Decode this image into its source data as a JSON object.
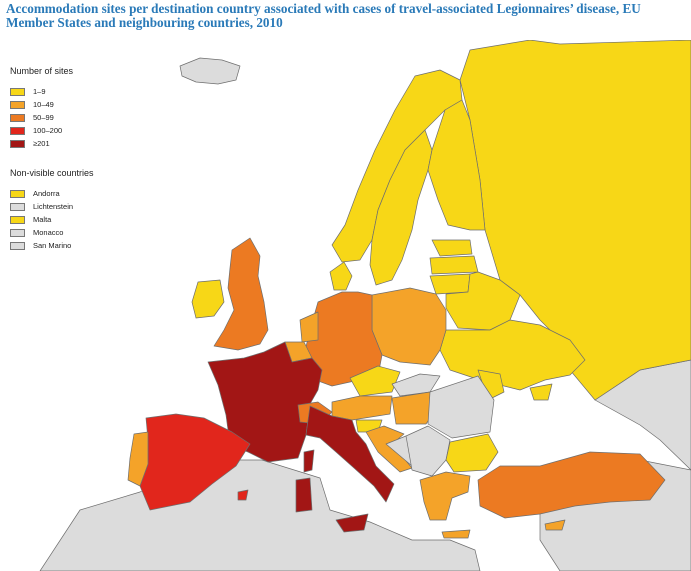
{
  "title": "Accommodation sites per destination country associated with cases of travel-associated Legionnaires’ disease, EU Member States and neighbouring countries, 2010",
  "colors": {
    "sea": "#ffffff",
    "non_data": "#dcdcdc",
    "border": "#6e6e6e",
    "c1_9": "#f7d717",
    "c10_49": "#f4a329",
    "c50_99": "#ec7a22",
    "c100_200": "#e1261c",
    "c201_plus": "#a21615"
  },
  "legend": {
    "title": "Number of sites",
    "items": [
      {
        "label": "1–9",
        "color": "#f7d717"
      },
      {
        "label": "10–49",
        "color": "#f4a329"
      },
      {
        "label": "50–99",
        "color": "#ec7a22"
      },
      {
        "label": "100–200",
        "color": "#e1261c"
      },
      {
        "label": "≥201",
        "color": "#a21615"
      }
    ]
  },
  "nonvisible": {
    "title": "Non-visible countries",
    "items": [
      {
        "label": "Andorra",
        "color": "#f7d717"
      },
      {
        "label": "Lichtenstein",
        "color": "#dcdcdc"
      },
      {
        "label": "Malta",
        "color": "#f7d717"
      },
      {
        "label": "Monacco",
        "color": "#dcdcdc"
      },
      {
        "label": "San Marino",
        "color": "#dcdcdc"
      }
    ]
  },
  "regions": {
    "iceland": "non_data",
    "norway": "1-9",
    "sweden": "1-9",
    "finland": "1-9",
    "russia": "1-9",
    "ireland": "1-9",
    "uk": "50-99",
    "denmark": "1-9",
    "netherlands": "10-49",
    "belgium": "10-49",
    "luxembourg": "10-49",
    "germany": "50-99",
    "poland": "10-49",
    "czech": "1-9",
    "austria": "10-49",
    "switzerland": "50-99",
    "france": "≥201",
    "spain": "100-200",
    "portugal": "10-49",
    "italy": "≥201",
    "hungary": "10-49",
    "slovenia": "1-9",
    "croatia": "10-49",
    "bosnia": "non_data",
    "serbia": "non_data",
    "romania": "non_data",
    "bulgaria": "1-9",
    "greece": "10-49",
    "turkey": "50-99",
    "cyprus": "10-49",
    "estonia": "1-9",
    "latvia": "1-9",
    "lithuania": "1-9",
    "belarus": "1-9",
    "ukraine": "1-9",
    "moldova": "1-9",
    "slovakia": "non_data",
    "north_africa": "non_data",
    "middle_east": "non_data"
  }
}
